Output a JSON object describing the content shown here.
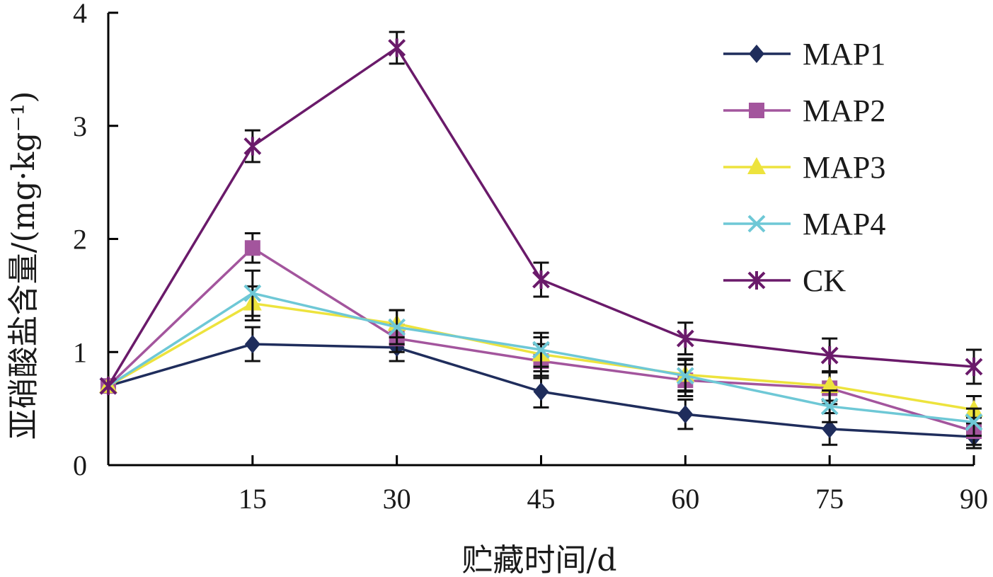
{
  "chart_data": {
    "type": "line",
    "x": [
      0,
      15,
      30,
      45,
      60,
      75,
      90
    ],
    "x_tick_labels": [
      "15",
      "30",
      "45",
      "60",
      "75",
      "90"
    ],
    "x_tick_values": [
      15,
      30,
      45,
      60,
      75,
      90
    ],
    "y_tick_labels": [
      "0",
      "1",
      "2",
      "3",
      "4"
    ],
    "y_tick_values": [
      0,
      1,
      2,
      3,
      4
    ],
    "xlim": [
      0,
      90
    ],
    "ylim": [
      0,
      4
    ],
    "xlabel": "贮藏时间/d",
    "ylabel": "亚硝酸盐含量/(mg·kg⁻¹)",
    "legend_position": "top-right",
    "grid": false,
    "series": [
      {
        "name": "MAP1",
        "color": "#1f2d5c",
        "marker": "diamond",
        "values": [
          0.7,
          1.07,
          1.04,
          0.65,
          0.45,
          0.32,
          0.25
        ],
        "errors": [
          0.02,
          0.15,
          0.12,
          0.14,
          0.13,
          0.14,
          0.1
        ]
      },
      {
        "name": "MAP2",
        "color": "#a3559d",
        "marker": "square",
        "values": [
          0.7,
          1.92,
          1.12,
          0.92,
          0.75,
          0.68,
          0.3
        ],
        "errors": [
          0.02,
          0.13,
          0.12,
          0.15,
          0.14,
          0.14,
          0.12
        ]
      },
      {
        "name": "MAP3",
        "color": "#ede33d",
        "marker": "triangle",
        "values": [
          0.7,
          1.43,
          1.25,
          0.98,
          0.8,
          0.7,
          0.49
        ],
        "errors": [
          0.02,
          0.15,
          0.12,
          0.15,
          0.14,
          0.13,
          0.12
        ]
      },
      {
        "name": "MAP4",
        "color": "#6ec8d6",
        "marker": "x",
        "values": [
          0.7,
          1.52,
          1.22,
          1.02,
          0.79,
          0.52,
          0.38
        ],
        "errors": [
          0.02,
          0.2,
          0.15,
          0.15,
          0.14,
          0.14,
          0.12
        ]
      },
      {
        "name": "CK",
        "color": "#6a1a6a",
        "marker": "asterisk",
        "values": [
          0.7,
          2.82,
          3.69,
          1.64,
          1.12,
          0.97,
          0.87
        ],
        "errors": [
          0.02,
          0.14,
          0.14,
          0.15,
          0.14,
          0.15,
          0.15
        ]
      }
    ]
  }
}
